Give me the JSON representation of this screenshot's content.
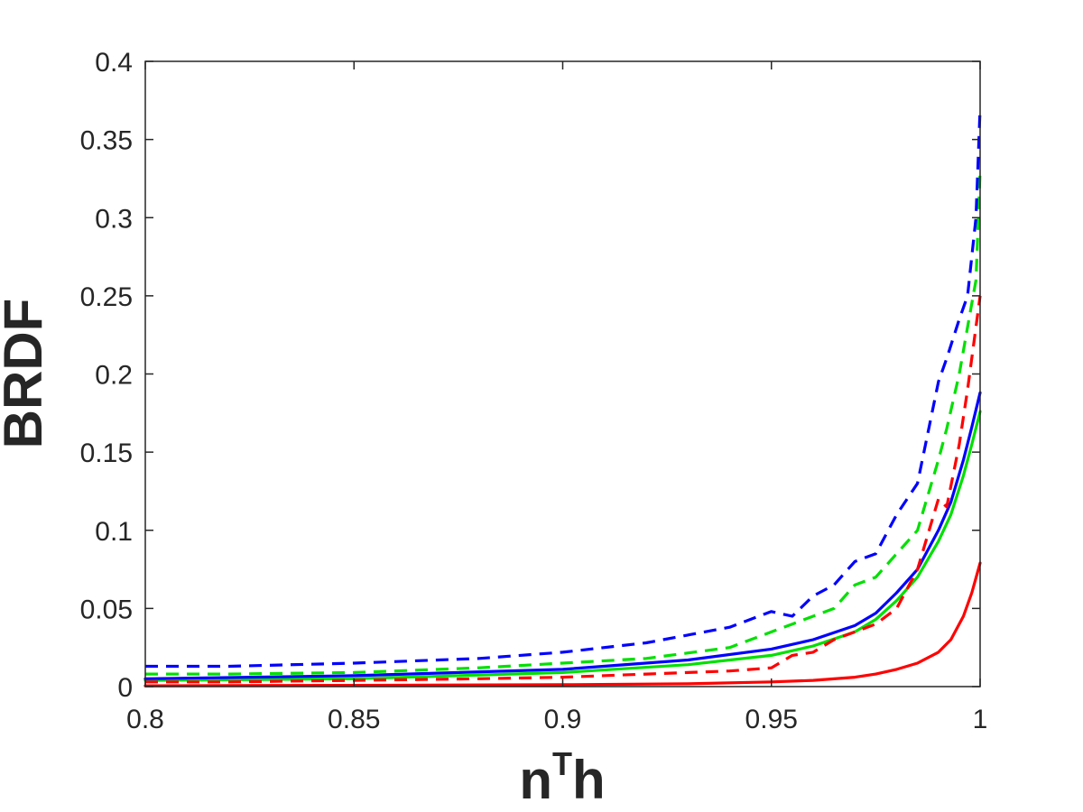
{
  "chart_data": {
    "type": "line",
    "title": "",
    "xlabel": "n",
    "xlabel_superscript": "T",
    "xlabel_suffix": "h",
    "ylabel": "BRDF",
    "xlim": [
      0.8,
      1.0
    ],
    "ylim": [
      0,
      0.4
    ],
    "xticks": [
      0.8,
      0.85,
      0.9,
      0.95,
      1.0
    ],
    "xtick_labels": [
      "0.8",
      "0.85",
      "0.9",
      "0.95",
      "1"
    ],
    "yticks": [
      0,
      0.05,
      0.1,
      0.15,
      0.2,
      0.25,
      0.3,
      0.35,
      0.4
    ],
    "ytick_labels": [
      "0",
      "0.05",
      "0.1",
      "0.15",
      "0.2",
      "0.25",
      "0.3",
      "0.35",
      "0.4"
    ],
    "grid": false,
    "legend": "none",
    "series": [
      {
        "color": "#ff0000",
        "style": "solid",
        "x": [
          0.8,
          0.85,
          0.9,
          0.93,
          0.95,
          0.96,
          0.97,
          0.975,
          0.98,
          0.985,
          0.99,
          0.993,
          0.996,
          0.998,
          1.0
        ],
        "y": [
          0.0005,
          0.0008,
          0.0012,
          0.0018,
          0.003,
          0.004,
          0.006,
          0.008,
          0.011,
          0.015,
          0.022,
          0.03,
          0.045,
          0.06,
          0.079
        ]
      },
      {
        "color": "#00e000",
        "style": "solid",
        "x": [
          0.8,
          0.85,
          0.9,
          0.93,
          0.95,
          0.96,
          0.97,
          0.975,
          0.98,
          0.985,
          0.99,
          0.993,
          0.996,
          0.998,
          1.0
        ],
        "y": [
          0.004,
          0.005,
          0.009,
          0.014,
          0.02,
          0.026,
          0.035,
          0.043,
          0.055,
          0.07,
          0.093,
          0.11,
          0.135,
          0.155,
          0.176
        ]
      },
      {
        "color": "#0000ff",
        "style": "solid",
        "x": [
          0.8,
          0.85,
          0.9,
          0.93,
          0.95,
          0.96,
          0.97,
          0.975,
          0.98,
          0.985,
          0.99,
          0.993,
          0.996,
          0.998,
          1.0
        ],
        "y": [
          0.005,
          0.007,
          0.011,
          0.017,
          0.024,
          0.03,
          0.039,
          0.047,
          0.06,
          0.075,
          0.1,
          0.118,
          0.145,
          0.166,
          0.188
        ]
      },
      {
        "color": "#ff0000",
        "style": "dashed",
        "x": [
          0.8,
          0.82,
          0.85,
          0.88,
          0.9,
          0.92,
          0.94,
          0.95,
          0.955,
          0.96,
          0.965,
          0.97,
          0.975,
          0.98,
          0.985,
          0.99,
          0.992,
          0.995,
          0.997,
          0.999,
          1.0
        ],
        "y": [
          0.003,
          0.003,
          0.004,
          0.005,
          0.006,
          0.008,
          0.01,
          0.012,
          0.02,
          0.022,
          0.03,
          0.035,
          0.04,
          0.05,
          0.075,
          0.12,
          0.115,
          0.155,
          0.19,
          0.23,
          0.25
        ]
      },
      {
        "color": "#00e000",
        "style": "dashed",
        "x": [
          0.8,
          0.82,
          0.85,
          0.88,
          0.9,
          0.92,
          0.94,
          0.95,
          0.955,
          0.96,
          0.965,
          0.97,
          0.975,
          0.98,
          0.985,
          0.99,
          0.992,
          0.995,
          0.997,
          0.999,
          1.0
        ],
        "y": [
          0.008,
          0.008,
          0.009,
          0.012,
          0.015,
          0.018,
          0.025,
          0.035,
          0.04,
          0.045,
          0.05,
          0.065,
          0.07,
          0.085,
          0.1,
          0.145,
          0.165,
          0.2,
          0.23,
          0.26,
          0.33
        ]
      },
      {
        "color": "#0000ff",
        "style": "dashed",
        "x": [
          0.8,
          0.82,
          0.85,
          0.88,
          0.9,
          0.92,
          0.94,
          0.95,
          0.955,
          0.96,
          0.965,
          0.97,
          0.975,
          0.98,
          0.985,
          0.99,
          0.992,
          0.995,
          0.997,
          0.999,
          1.0
        ],
        "y": [
          0.013,
          0.013,
          0.015,
          0.018,
          0.022,
          0.028,
          0.038,
          0.048,
          0.045,
          0.058,
          0.065,
          0.08,
          0.085,
          0.11,
          0.13,
          0.195,
          0.21,
          0.235,
          0.25,
          0.3,
          0.37
        ]
      }
    ]
  }
}
